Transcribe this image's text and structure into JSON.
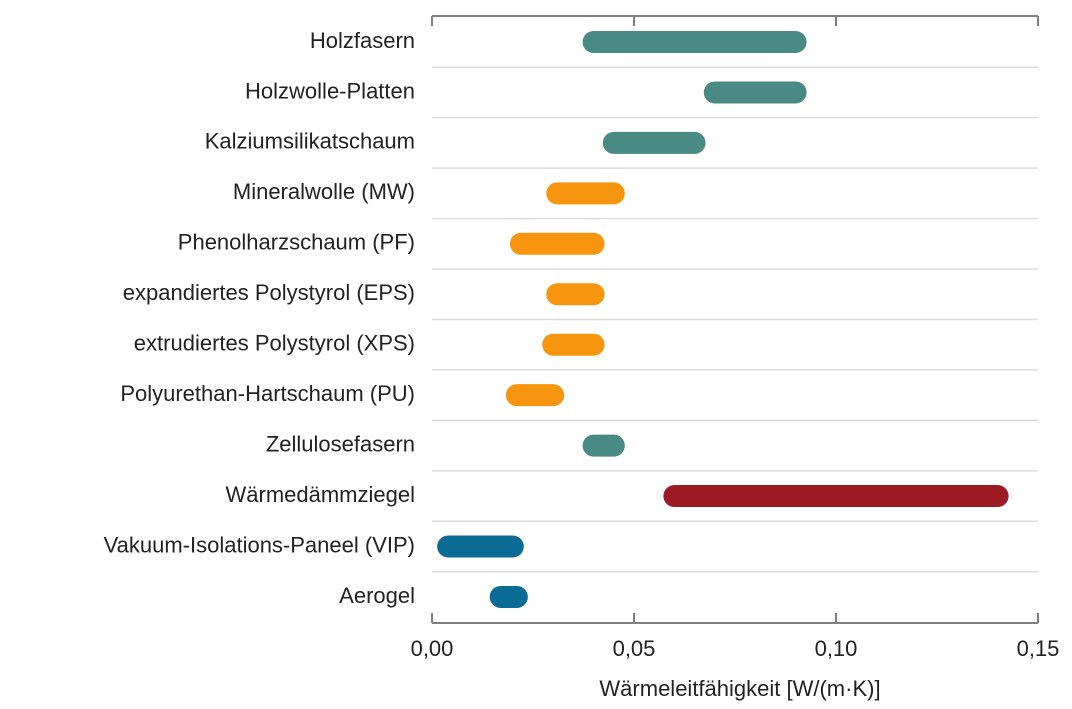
{
  "chart_data": {
    "type": "range-bar",
    "x_label": "Wärmeleitfähigkeit [W/(m·K)]",
    "categories": [
      "Holzfasern",
      "Holzwolle-Platten",
      "Kalziumsilikatschaum",
      "Mineralwolle (MW)",
      "Phenolharzschaum (PF)",
      "expandiertes Polystyrol (EPS)",
      "extrudiertes Polystyrol (XPS)",
      "Polyurethan-Hartschaum (PU)",
      "Zellulosefasern",
      "Wärmedämmziegel",
      "Vakuum-Isolations-Paneel (VIP)",
      "Aerogel"
    ],
    "low": [
      0.04,
      0.07,
      0.045,
      0.031,
      0.022,
      0.031,
      0.03,
      0.021,
      0.04,
      0.06,
      0.004,
      0.017
    ],
    "high": [
      0.09,
      0.09,
      0.065,
      0.045,
      0.04,
      0.04,
      0.04,
      0.03,
      0.045,
      0.14,
      0.02,
      0.021
    ],
    "colors": [
      "#4a8a85",
      "#4a8a85",
      "#4a8a85",
      "#f7950f",
      "#f7950f",
      "#f7950f",
      "#f7950f",
      "#f7950f",
      "#4a8a85",
      "#9b1b24",
      "#0a6b95",
      "#0a6b95"
    ],
    "xlim": [
      0,
      0.15
    ],
    "xticks": [
      {
        "value": 0,
        "label": "0,00"
      },
      {
        "value": 0.05,
        "label": "0,05"
      },
      {
        "value": 0.1,
        "label": "0,10"
      },
      {
        "value": 0.15,
        "label": "0,15"
      }
    ],
    "grid": true
  }
}
